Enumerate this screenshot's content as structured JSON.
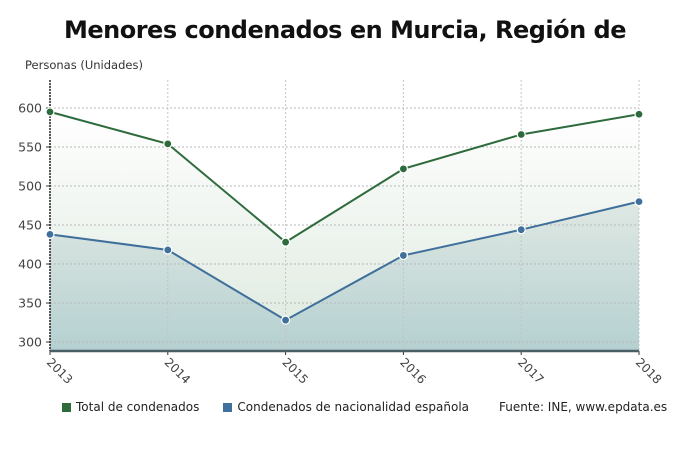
{
  "chart_data": {
    "type": "line",
    "title": "Menores condenados en Murcia, Región de",
    "ylabel": "Personas (Unidades)",
    "xlabel": "",
    "categories": [
      "2013",
      "2014",
      "2015",
      "2016",
      "2017",
      "2018"
    ],
    "series": [
      {
        "name": "Total de condenados",
        "color": "#2e6b3c",
        "values": [
          595,
          554,
          428,
          522,
          566,
          592
        ]
      },
      {
        "name": "Condenados de nacionalidad española",
        "color": "#3f6f9b",
        "values": [
          438,
          418,
          328,
          411,
          444,
          480
        ]
      }
    ],
    "yticks": [
      300,
      350,
      400,
      450,
      500,
      550,
      600
    ],
    "ylim": [
      290,
      630
    ],
    "grid": true,
    "area_fill": true,
    "legend_position": "bottom",
    "source": "Fuente: INE, www.epdata.es"
  },
  "legend": {
    "items": [
      {
        "label": "Total de condenados",
        "color": "#2e6b3c"
      },
      {
        "label": "Condenados de nacionalidad española",
        "color": "#3f6f9b"
      }
    ],
    "source": "Fuente: INE, www.epdata.es"
  }
}
